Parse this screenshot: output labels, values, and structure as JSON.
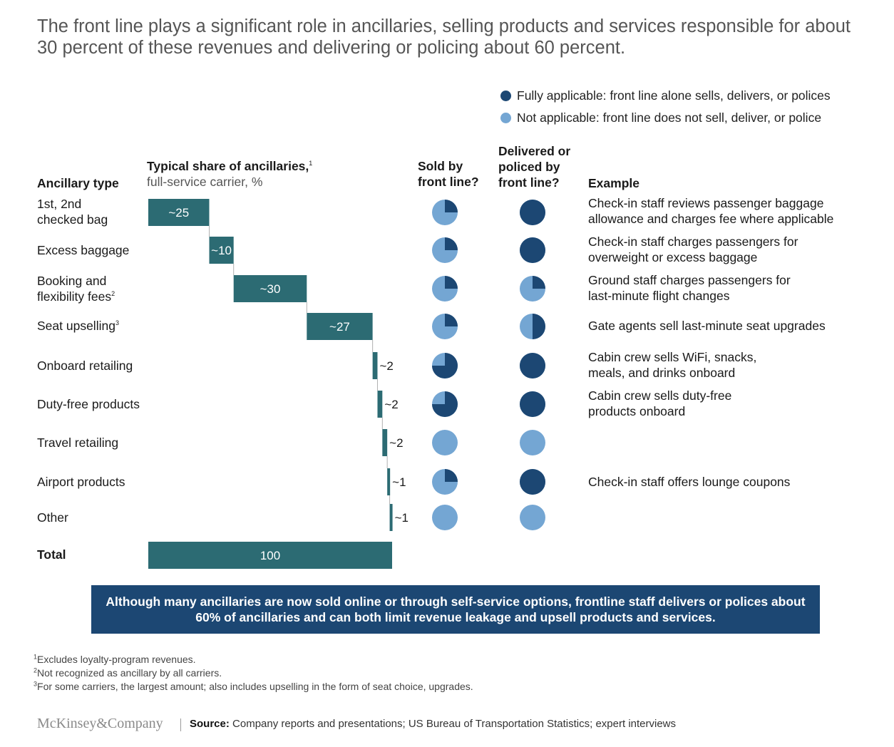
{
  "title": "The front line plays a significant role in ancillaries, selling products and services responsible for about 30 percent of these revenues and delivering or policing about 60 percent.",
  "legend": {
    "fully": "Fully applicable: front line alone sells, delivers, or polices",
    "not": "Not applicable: front line does not sell, deliver, or police",
    "fully_color": "#1c4773",
    "not_color": "#74a6d3"
  },
  "headers": {
    "ancillary_type": "Ancillary type",
    "share_bold": "Typical share of ancillaries,",
    "share_sup": "1",
    "share_sub": "full-service carrier, %",
    "sold_1": "Sold by",
    "sold_2": "front line?",
    "deliv_1": "Delivered or",
    "deliv_2": "policed by",
    "deliv_3": "front line?",
    "example": "Example"
  },
  "rows": [
    {
      "l1": "1st, 2nd",
      "l2": "checked bag",
      "sup": "",
      "example1": "Check-in staff reviews passenger baggage",
      "example2": "allowance and charges fee where applicable"
    },
    {
      "l1": "Excess baggage",
      "l2": "",
      "sup": "",
      "example1": "Check-in staff charges passengers for",
      "example2": "overweight or excess baggage"
    },
    {
      "l1": "Booking and",
      "l2": "flexibility fees",
      "sup": "2",
      "example1": "Ground staff charges passengers for",
      "example2": "last-minute flight changes"
    },
    {
      "l1": "Seat upselling",
      "l2": "",
      "sup": "3",
      "example1": "Gate agents sell last-minute seat upgrades",
      "example2": ""
    },
    {
      "l1": "Onboard retailing",
      "l2": "",
      "sup": "",
      "example1": "Cabin crew sells WiFi, snacks,",
      "example2": "meals, and drinks onboard"
    },
    {
      "l1": "Duty-free products",
      "l2": "",
      "sup": "",
      "example1": "Cabin crew sells duty-free",
      "example2": "products onboard"
    },
    {
      "l1": "Travel retailing",
      "l2": "",
      "sup": "",
      "example1": "",
      "example2": ""
    },
    {
      "l1": "Airport products",
      "l2": "",
      "sup": "",
      "example1": "Check-in staff offers lounge coupons",
      "example2": ""
    },
    {
      "l1": "Other",
      "l2": "",
      "sup": "",
      "example1": "",
      "example2": ""
    }
  ],
  "total_label": "Total",
  "chart_data": {
    "type": "bar",
    "subtype": "waterfall",
    "categories": [
      "1st, 2nd checked bag",
      "Excess baggage",
      "Booking and flexibility fees",
      "Seat upselling",
      "Onboard retailing",
      "Duty-free products",
      "Travel retailing",
      "Airport products",
      "Other",
      "Total"
    ],
    "values": [
      25,
      10,
      30,
      27,
      2,
      2,
      2,
      1,
      1,
      100
    ],
    "data_labels": [
      "~25",
      "~10",
      "~30",
      "~27",
      "~2",
      "~2",
      "~2",
      "~1",
      "~1",
      "100"
    ],
    "bar_color": "#2c6b73",
    "sold_by_front_line": [
      0.25,
      0.25,
      0.25,
      0.25,
      0.75,
      0.75,
      0,
      0.25,
      0
    ],
    "delivered_or_policed_by_front_line": [
      1,
      1,
      0.25,
      0.5,
      1,
      1,
      0,
      1,
      0
    ]
  },
  "banner": "Although many ancillaries are now sold online or through self-service options, frontline staff delivers or polices about 60% of ancillaries and can both limit revenue leakage and upsell products and services.",
  "footnotes": [
    {
      "sup": "1",
      "text": "Excludes loyalty-program revenues."
    },
    {
      "sup": "2",
      "text": "Not recognized as ancillary by all carriers."
    },
    {
      "sup": "3",
      "text": "For some carriers, the largest amount; also includes upselling in the form of seat choice, upgrades."
    }
  ],
  "brand": "McKinsey&Company",
  "source_label": "Source:",
  "source_text": "Company reports and presentations; US Bureau of Transportation Statistics; expert interviews"
}
